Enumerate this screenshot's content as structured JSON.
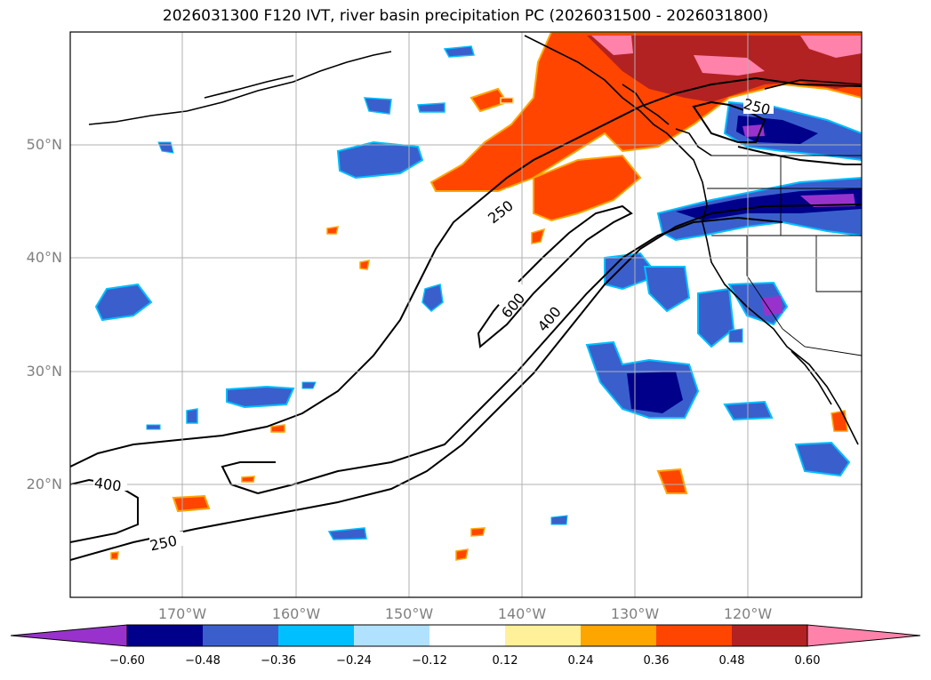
{
  "title": "2026031300 F120 IVT, river basin precipitation PC (2026031500 - 2026031800)",
  "map": {
    "lat_labels": [
      "50°N",
      "40°N",
      "30°N",
      "20°N"
    ],
    "lon_labels": [
      "170°W",
      "160°W",
      "150°W",
      "140°W",
      "130°W",
      "120°W"
    ],
    "contour_labels": [
      "250",
      "600",
      "400",
      "400",
      "250",
      "250"
    ],
    "colors": {
      "land": "#000000",
      "contour": "#000000",
      "grid": "#b0b0b0"
    }
  },
  "colorbar": {
    "colors": [
      "#9932cc",
      "#00008b",
      "#3a5fcd",
      "#00bfff",
      "#b0e2ff",
      "#ffffff",
      "#fff09a",
      "#ffa500",
      "#ff4500",
      "#b22222",
      "#ff82ab"
    ],
    "ticks": [
      "−0.60",
      "−0.48",
      "−0.36",
      "−0.24",
      "−0.12",
      "0.12",
      "0.24",
      "0.36",
      "0.48",
      "0.60"
    ]
  }
}
